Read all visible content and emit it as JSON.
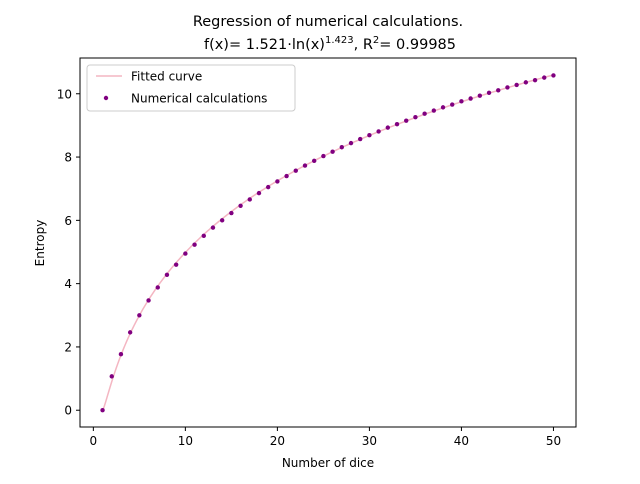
{
  "chart_data": {
    "type": "scatter",
    "title_line1": "Regression of numerical calculations.",
    "title_line2": {
      "prefix": "f(x)= 1.521·ln(x)",
      "exponent": "1.423",
      "r2_prefix": ",  R",
      "r2_sup": "2",
      "r2_value": "= 0.99985"
    },
    "xlabel": "Number of dice",
    "ylabel": "Entropy",
    "xlim": [
      -1.45,
      52.45
    ],
    "ylim": [
      -0.53,
      11.13
    ],
    "xticks": [
      0,
      10,
      20,
      30,
      40,
      50
    ],
    "yticks": [
      0,
      2,
      4,
      6,
      8,
      10
    ],
    "grid": false,
    "legend_placement": "upper-left",
    "series": [
      {
        "name": "Fitted curve",
        "kind": "line",
        "color": "#f4b6c2",
        "model": {
          "a": 1.521,
          "b": 1.423
        },
        "x_range": [
          1,
          50
        ]
      },
      {
        "name": "Numerical calculations",
        "kind": "scatter",
        "color": "#800080",
        "x": [
          1,
          2,
          3,
          4,
          5,
          6,
          7,
          8,
          9,
          10,
          11,
          12,
          13,
          14,
          15,
          16,
          17,
          18,
          19,
          20,
          21,
          22,
          23,
          24,
          25,
          26,
          27,
          28,
          29,
          30,
          31,
          32,
          33,
          34,
          35,
          36,
          37,
          38,
          39,
          40,
          41,
          42,
          43,
          44,
          45,
          46,
          47,
          48,
          49,
          50
        ],
        "y": [
          0.0,
          1.07,
          1.77,
          2.46,
          3.0,
          3.47,
          3.88,
          4.28,
          4.6,
          4.95,
          5.23,
          5.51,
          5.77,
          6.0,
          6.23,
          6.46,
          6.66,
          6.86,
          7.05,
          7.23,
          7.4,
          7.57,
          7.73,
          7.88,
          8.03,
          8.17,
          8.31,
          8.44,
          8.57,
          8.69,
          8.81,
          8.93,
          9.04,
          9.15,
          9.26,
          9.37,
          9.47,
          9.57,
          9.66,
          9.76,
          9.85,
          9.94,
          10.03,
          10.11,
          10.2,
          10.28,
          10.36,
          10.43,
          10.51,
          10.58
        ]
      }
    ]
  }
}
